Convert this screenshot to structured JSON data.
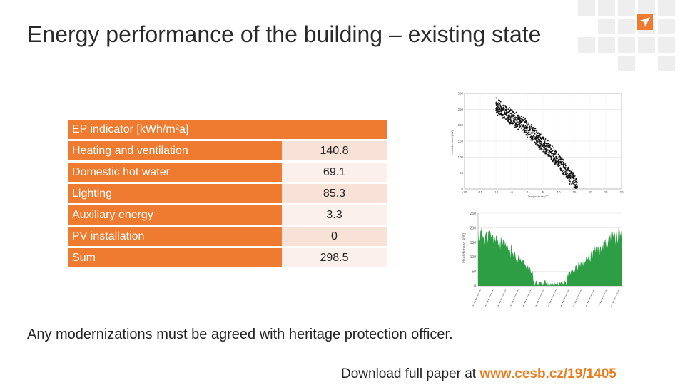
{
  "slide": {
    "title": "Energy performance of the building – existing state",
    "note": "Any modernizations must be agreed with heritage protection officer.",
    "download_text": "Download full paper at ",
    "download_url": "www.cesb.cz/19/1405",
    "accent_color": "#ee7b2f"
  },
  "table": {
    "header": "EP indicator [kWh/m²a]",
    "rows": [
      {
        "label": "Heating and ventilation",
        "value": "140.8"
      },
      {
        "label": "Domestic hot water",
        "value": "69.1"
      },
      {
        "label": "Lighting",
        "value": "85.3"
      },
      {
        "label": "Auxiliary energy",
        "value": "3.3"
      },
      {
        "label": "PV installation",
        "value": "0"
      },
      {
        "label": "Sum",
        "value": "298.5"
      }
    ]
  },
  "charts": {
    "scatter": {
      "ylabel": "Heat demand [kW]",
      "xlabel": "Temperature (°C)",
      "y_ticks": [
        "300",
        "250",
        "200",
        "150",
        "100",
        "50",
        "0"
      ],
      "x_ticks": [
        "-20",
        "-15",
        "-10",
        "-5",
        "0",
        "5",
        "10",
        "15",
        "20",
        "25",
        "30"
      ]
    },
    "area": {
      "ylabel": "Heat demand [kW]",
      "y_ticks": [
        "250",
        "200",
        "150",
        "100",
        "50",
        "0"
      ]
    }
  },
  "chart_data": [
    {
      "type": "scatter",
      "title": "",
      "xlabel": "Temperature (°C)",
      "ylabel": "Heat demand [kW]",
      "xlim": [
        -20,
        30
      ],
      "ylim": [
        0,
        300
      ],
      "x_ticks": [
        -20,
        -15,
        -10,
        -5,
        0,
        5,
        10,
        15,
        20,
        25,
        30
      ],
      "y_ticks": [
        0,
        50,
        100,
        150,
        200,
        250,
        300
      ],
      "trend": {
        "x": [
          -10,
          0,
          10,
          16
        ],
        "y": [
          260,
          190,
          90,
          10
        ]
      },
      "grid": true
    },
    {
      "type": "area",
      "title": "",
      "ylabel": "Heat demand [kW]",
      "ylim": [
        0,
        250
      ],
      "y_ticks": [
        0,
        50,
        100,
        150,
        200,
        250
      ],
      "grid": true
    }
  ]
}
